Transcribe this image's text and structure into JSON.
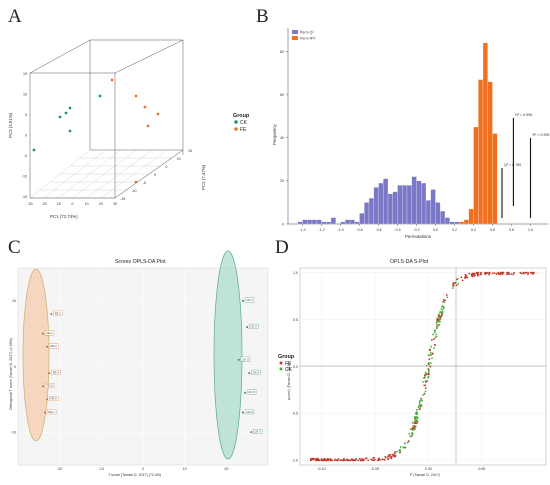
{
  "figure": {
    "panels": [
      "A",
      "B",
      "C",
      "D"
    ]
  },
  "chart_data": [
    {
      "panel": "A",
      "type": "scatter",
      "xlabel": "PC1 (72.74%)",
      "ylabel": "PC3 (4.51%)",
      "zlabel": "PC2 (7.47%)",
      "x_ticks": [
        "-30",
        "-20",
        "-10",
        "0",
        "10",
        "20",
        "30"
      ],
      "z_ticks": [
        "-15",
        "-10",
        "-5",
        "0",
        "5",
        "10",
        "15"
      ],
      "y_ticks": [
        "15",
        "10",
        "5",
        "0",
        "-5",
        "-10",
        "-15"
      ],
      "legend_title": "Group",
      "series": [
        {
          "name": "CK",
          "color": "#1a9a6a"
        },
        {
          "name": "FE",
          "color": "#f07030"
        }
      ]
    },
    {
      "panel": "B",
      "type": "bar",
      "xlabel": "Permutations",
      "ylabel": "Frequency",
      "xlim": [
        -1.5,
        1.1
      ],
      "ylim": [
        0,
        90
      ],
      "x_ticks": [
        "-1.4",
        "-1.2",
        "-1.0",
        "-0.8",
        "-0.6",
        "-0.4",
        "-0.2",
        "0.0",
        "0.2",
        "0.4",
        "0.6",
        "0.8",
        "1.0"
      ],
      "y_ticks": [
        "0",
        "20",
        "40",
        "60",
        "80"
      ],
      "bin_width": 0.05,
      "series": [
        {
          "name": "Perm Q²",
          "color": "#7b78c8",
          "bins_left": [
            -1.45,
            -1.4,
            -1.35,
            -1.3,
            -1.25,
            -1.2,
            -1.15,
            -1.1,
            -1.05,
            -1.0,
            -0.95,
            -0.9,
            -0.85,
            -0.8,
            -0.75,
            -0.7,
            -0.65,
            -0.6,
            -0.55,
            -0.5,
            -0.45,
            -0.4,
            -0.35,
            -0.3,
            -0.25,
            -0.2,
            -0.15,
            -0.1,
            -0.05,
            0.0,
            0.05,
            0.1,
            0.15,
            0.2
          ],
          "counts": [
            1,
            2,
            2,
            2,
            2,
            1,
            1,
            3,
            0,
            1,
            2,
            2,
            1,
            5,
            10,
            12,
            17,
            19,
            21,
            14,
            15,
            18,
            18,
            18,
            22,
            20,
            19,
            11,
            16,
            10,
            6,
            3,
            1,
            1
          ]
        },
        {
          "name": "Perm R²Y",
          "color": "#f07020",
          "bins_left": [
            0.25,
            0.3,
            0.35,
            0.4,
            0.45,
            0.5,
            0.55,
            0.6
          ],
          "counts": [
            1,
            2,
            7,
            45,
            67,
            84,
            66,
            42
          ]
        }
      ],
      "annotations": [
        {
          "label": "Q² = 0.780",
          "x": 0.7
        },
        {
          "label": "R² = 0.995",
          "x": 0.82
        },
        {
          "label": "R² = 0.995 (p<0.05)",
          "x": 1.0
        }
      ]
    },
    {
      "panel": "C",
      "type": "scatter",
      "title": "Scores OPLS-DA Plot",
      "xlabel": "T score (Tamari D. 2017) (72.4%)",
      "ylabel": "Orthogonal T score (Tamari D. 2017) (4.36%)",
      "xlim": [
        -30,
        30
      ],
      "ylim": [
        -15,
        15
      ],
      "x_ticks": [
        "-20",
        "-10",
        "0",
        "10",
        "20"
      ],
      "y_ticks": [
        "10",
        "0",
        "-10"
      ],
      "series": [
        {
          "name": "FE",
          "color": "#d2691e",
          "x": [
            -24,
            -22,
            -23,
            -22.5,
            -24,
            -23,
            -23.5
          ],
          "y": [
            5,
            8,
            3,
            -1,
            -3,
            -5,
            -7
          ],
          "labels": [
            "FE-1",
            "FE-2",
            "FE-3",
            "FE-4",
            "FE-5",
            "FE-6",
            "FE-7"
          ]
        },
        {
          "name": "CK",
          "color": "#2a8a7a",
          "x": [
            24,
            25,
            23,
            25.5,
            24.5,
            24,
            26
          ],
          "y": [
            10,
            6,
            1,
            -1,
            -4,
            -7,
            -10
          ],
          "labels": [
            "CK-1",
            "CK-2",
            "CK-3",
            "CK-4",
            "CK-5",
            "CK-6",
            "CK-7"
          ]
        }
      ]
    },
    {
      "panel": "D",
      "type": "scatter",
      "title": "OPLS-DA S-Plot",
      "xlabel": "P (Tamari D. 2017)",
      "ylabel": "p(corr) (Tamari D. 2017)",
      "xlim": [
        -0.12,
        0.11
      ],
      "ylim": [
        -1.05,
        1.05
      ],
      "x_ticks": [
        "-0.10",
        "-0.05",
        "0.00",
        "0.05"
      ],
      "y_ticks": [
        "1.0",
        "0.5",
        "0.0",
        "-0.5",
        "-1.0"
      ],
      "legend_title": "Group",
      "series": [
        {
          "name": "FE",
          "color": "#c0392b"
        },
        {
          "name": "CK",
          "color": "#4caf3a"
        }
      ]
    }
  ]
}
